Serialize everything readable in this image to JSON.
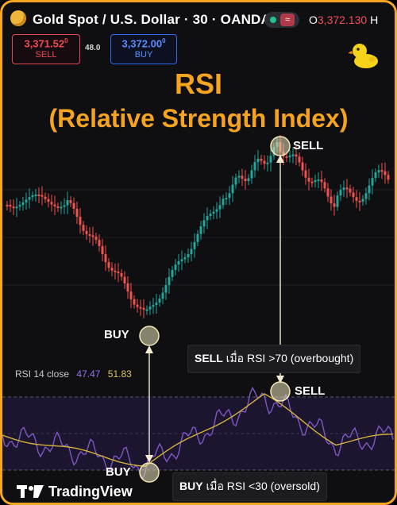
{
  "header": {
    "symbol_title": "Gold Spot / U.S. Dollar · 30 · OANDA",
    "ohlc_label": "O",
    "ohlc_value": "3,372.130",
    "ohlc_suffix": "H",
    "sell_price": "3,371.52",
    "sell_price_sup": "0",
    "sell_label": "SELL",
    "spread": "48.0",
    "buy_price": "3,372.00",
    "buy_price_sup": "0",
    "buy_label": "BUY"
  },
  "headline": {
    "title": "RSI",
    "subtitle": "(Relative Strength Index)"
  },
  "callouts": {
    "price_sell": "SELL",
    "price_buy": "BUY",
    "rsi_sell": "SELL",
    "rsi_buy": "BUY"
  },
  "notes": {
    "sell_rule_key": "SELL",
    "sell_rule_rest": " เมื่อ RSI >70 (overbought)",
    "buy_rule_key": "BUY",
    "buy_rule_rest": " เมื่อ RSI <30 (oversold)"
  },
  "rsi_legend": {
    "name": "RSI 14 close",
    "rsi_value": "47.47",
    "ma_value": "51.83"
  },
  "branding": {
    "name": "TradingView"
  },
  "colors": {
    "accent": "#f6a320",
    "bull": "#26a69a",
    "bear": "#ef5350",
    "rsi_line": "#7e57c2",
    "rsi_ma": "#d4b13a"
  }
}
